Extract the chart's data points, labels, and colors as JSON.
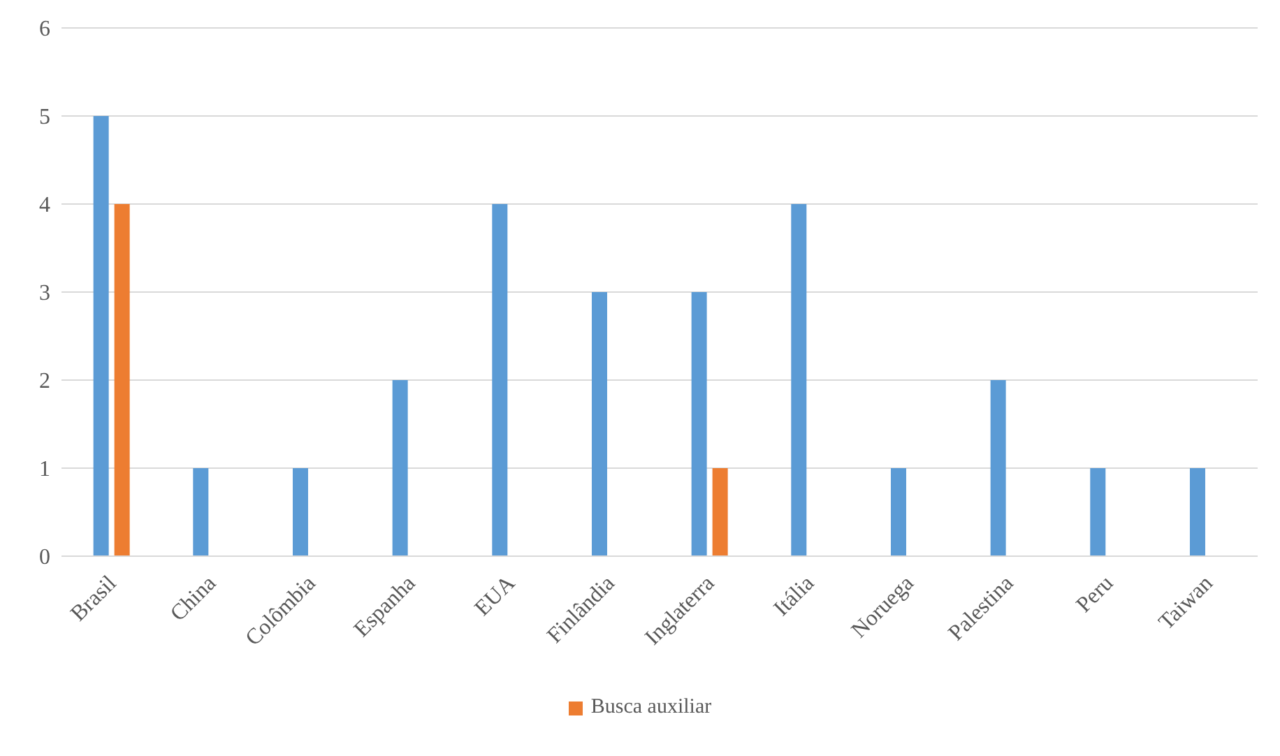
{
  "chart_data": {
    "type": "bar",
    "categories": [
      "Brasil",
      "China",
      "Colômbia",
      "Espanha",
      "EUA",
      "Finlândia",
      "Inglaterra",
      "Itália",
      "Noruega",
      "Palestina",
      "Peru",
      "Taiwan"
    ],
    "series": [
      {
        "color": "#5b9bd5",
        "values": [
          5,
          1,
          1,
          2,
          4,
          3,
          3,
          4,
          1,
          2,
          1,
          1
        ]
      },
      {
        "name": "Busca auxiliar",
        "color": "#ed7d31",
        "values": [
          4,
          null,
          null,
          null,
          null,
          null,
          1,
          null,
          null,
          null,
          null,
          null
        ]
      }
    ],
    "ylim": [
      0,
      6
    ],
    "yticks": [
      0,
      1,
      2,
      3,
      4,
      5,
      6
    ],
    "grid": "y",
    "legend": "bottom"
  }
}
